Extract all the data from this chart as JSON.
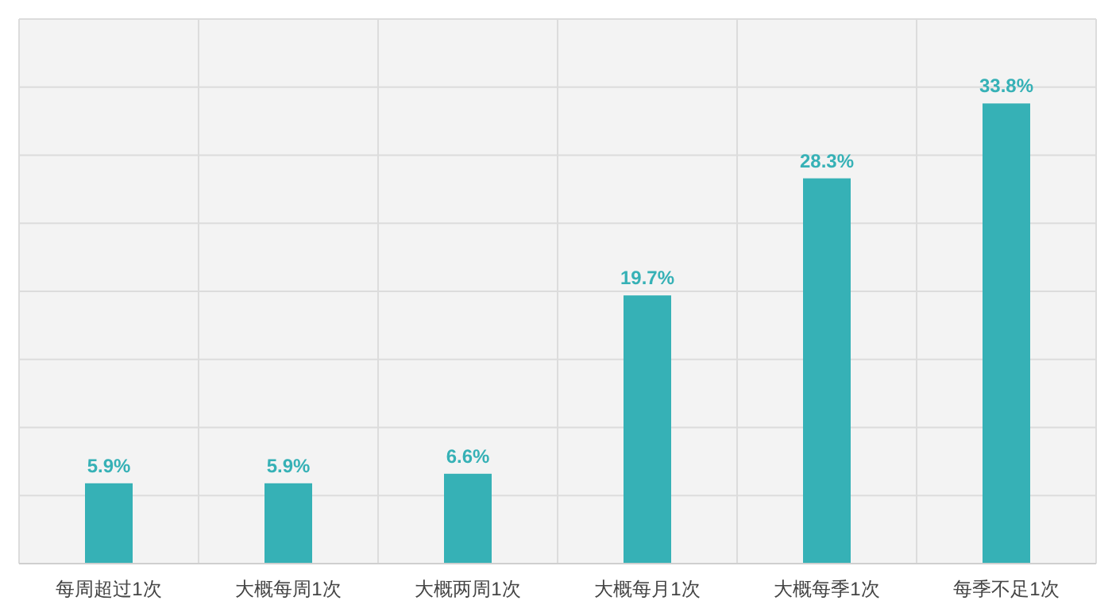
{
  "chart_data": {
    "type": "bar",
    "categories": [
      "每周超过1次",
      "大概每周1次",
      "大概两周1次",
      "大概每月1次",
      "大概每季1次",
      "每季不足1次"
    ],
    "values": [
      5.9,
      5.9,
      6.6,
      19.7,
      28.3,
      33.8
    ],
    "value_labels": [
      "5.9%",
      "5.9%",
      "6.6%",
      "19.7%",
      "28.3%",
      "33.8%"
    ],
    "color": "#36b1b6",
    "ylim": [
      0,
      40
    ],
    "yticks": [
      {
        "value": 0,
        "label": null
      },
      {
        "value": 5,
        "label": null
      },
      {
        "value": 10,
        "label": null
      },
      {
        "value": 15,
        "label": null
      },
      {
        "value": 20,
        "label": null
      },
      {
        "value": 25,
        "label": null
      },
      {
        "value": 30,
        "label": null
      },
      {
        "value": 35,
        "label": null
      },
      {
        "value": 40,
        "label": null
      }
    ],
    "tick_labels": "x",
    "grid": true
  }
}
